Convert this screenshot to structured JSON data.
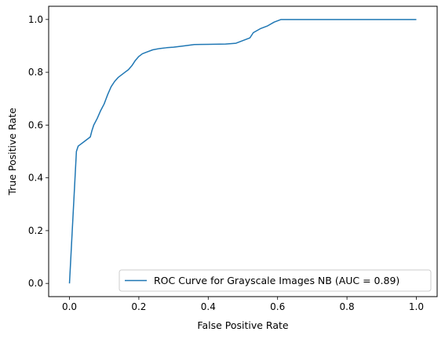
{
  "chart_data": {
    "type": "line",
    "xlabel": "False Positive Rate",
    "ylabel": "True Positive Rate",
    "xlim": [
      -0.06,
      1.06
    ],
    "ylim": [
      -0.05,
      1.05
    ],
    "xticks": [
      "0.0",
      "0.2",
      "0.4",
      "0.6",
      "0.8",
      "1.0"
    ],
    "yticks": [
      "0.0",
      "0.2",
      "0.4",
      "0.6",
      "0.8",
      "1.0"
    ],
    "grid": false,
    "legend_position": "lower-right",
    "series": [
      {
        "name": "ROC Curve for Grayscale Images NB (AUC = 0.89)",
        "color": "#1f77b4",
        "x": [
          0.0,
          0.01,
          0.02,
          0.025,
          0.03,
          0.04,
          0.05,
          0.06,
          0.065,
          0.07,
          0.08,
          0.09,
          0.1,
          0.11,
          0.12,
          0.13,
          0.14,
          0.15,
          0.16,
          0.17,
          0.18,
          0.19,
          0.2,
          0.21,
          0.22,
          0.24,
          0.26,
          0.28,
          0.3,
          0.33,
          0.36,
          0.4,
          0.45,
          0.48,
          0.5,
          0.52,
          0.53,
          0.55,
          0.57,
          0.59,
          0.61,
          0.7,
          0.8,
          0.9,
          1.0
        ],
        "y": [
          0.0,
          0.25,
          0.5,
          0.52,
          0.525,
          0.535,
          0.545,
          0.555,
          0.58,
          0.6,
          0.625,
          0.655,
          0.68,
          0.715,
          0.745,
          0.765,
          0.78,
          0.79,
          0.8,
          0.81,
          0.825,
          0.845,
          0.86,
          0.87,
          0.875,
          0.885,
          0.89,
          0.893,
          0.895,
          0.9,
          0.905,
          0.906,
          0.907,
          0.91,
          0.92,
          0.93,
          0.95,
          0.965,
          0.975,
          0.99,
          1.0,
          1.0,
          1.0,
          1.0,
          1.0
        ]
      }
    ]
  }
}
